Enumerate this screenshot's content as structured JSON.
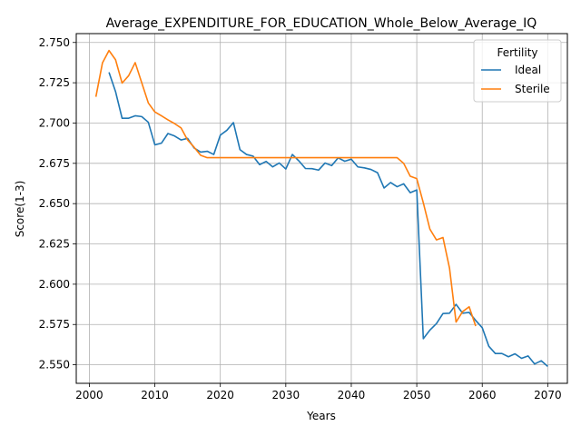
{
  "chart_data": {
    "type": "line",
    "title": "Average_EXPENDITURE_FOR_EDUCATION_Whole_Below_Average_IQ",
    "xlabel": "Years",
    "ylabel": "Score(1-3)",
    "xlim": [
      1998,
      2073
    ],
    "ylim": [
      2.5385,
      2.7555
    ],
    "x_ticks": [
      2000,
      2010,
      2020,
      2030,
      2040,
      2050,
      2060,
      2070
    ],
    "y_ticks": [
      2.55,
      2.575,
      2.6,
      2.625,
      2.65,
      2.675,
      2.7,
      2.725,
      2.75
    ],
    "x_tick_labels": [
      "2000",
      "2010",
      "2020",
      "2030",
      "2040",
      "2050",
      "2060",
      "2070"
    ],
    "y_tick_labels": [
      "2.550",
      "2.575",
      "2.600",
      "2.625",
      "2.650",
      "2.675",
      "2.700",
      "2.725",
      "2.750"
    ],
    "grid": true,
    "legend": {
      "title": "Fertility",
      "placement": "top-right"
    },
    "series": [
      {
        "name": "Ideal",
        "color": "#1f77b4",
        "x": [
          2003,
          2004,
          2005,
          2006,
          2007,
          2008,
          2009,
          2010,
          2011,
          2012,
          2013,
          2014,
          2015,
          2016,
          2017,
          2018,
          2019,
          2020,
          2021,
          2022,
          2023,
          2024,
          2025,
          2026,
          2027,
          2028,
          2029,
          2030,
          2031,
          2032,
          2033,
          2034,
          2035,
          2036,
          2037,
          2038,
          2039,
          2040,
          2041,
          2042,
          2043,
          2044,
          2045,
          2046,
          2047,
          2048,
          2049,
          2050,
          2051,
          2052,
          2053,
          2054,
          2055,
          2056,
          2057,
          2058,
          2059,
          2060,
          2061,
          2062,
          2063,
          2064,
          2065,
          2066,
          2067,
          2068,
          2069,
          2070
        ],
        "y": [
          2.7315,
          2.7195,
          2.703,
          2.703,
          2.7045,
          2.704,
          2.7005,
          2.6865,
          2.6875,
          2.6935,
          2.692,
          2.6895,
          2.6905,
          2.6845,
          2.682,
          2.6825,
          2.6805,
          2.6925,
          2.6955,
          2.7003,
          2.6835,
          2.6805,
          2.6795,
          2.6742,
          2.6762,
          2.6728,
          2.6752,
          2.6715,
          2.6805,
          2.6765,
          2.6718,
          2.6717,
          2.6708,
          2.6752,
          2.6736,
          2.6784,
          2.6763,
          2.6776,
          2.6728,
          2.6722,
          2.6712,
          2.6692,
          2.6597,
          2.6631,
          2.6605,
          2.6623,
          2.6568,
          2.6585,
          2.5662,
          2.5715,
          2.5755,
          2.5818,
          2.582,
          2.5875,
          2.582,
          2.5825,
          2.5775,
          2.573,
          2.5615,
          2.557,
          2.557,
          2.555,
          2.5568,
          2.554,
          2.5555,
          2.5505,
          2.5525,
          2.549
        ]
      },
      {
        "name": "Sterile",
        "color": "#ff7f0e",
        "x": [
          2001,
          2002,
          2003,
          2004,
          2005,
          2006,
          2007,
          2008,
          2009,
          2010,
          2011,
          2012,
          2013,
          2014,
          2015,
          2016,
          2017,
          2018,
          2019,
          2020,
          2021,
          2022,
          2023,
          2024,
          2025,
          2026,
          2027,
          2028,
          2029,
          2030,
          2031,
          2032,
          2033,
          2034,
          2035,
          2036,
          2037,
          2038,
          2039,
          2040,
          2041,
          2042,
          2043,
          2044,
          2045,
          2046,
          2047,
          2048,
          2049,
          2050,
          2051,
          2052,
          2053,
          2054,
          2055,
          2056,
          2057,
          2058,
          2059
        ],
        "y": [
          2.7163,
          2.7373,
          2.745,
          2.7393,
          2.7248,
          2.7294,
          2.7375,
          2.725,
          2.7125,
          2.7069,
          2.7045,
          2.702,
          2.6997,
          2.697,
          2.6895,
          2.685,
          2.68,
          2.6785,
          2.6785,
          2.6785,
          2.6785,
          2.6785,
          2.6785,
          2.6785,
          2.6785,
          2.6785,
          2.6785,
          2.6785,
          2.6785,
          2.6785,
          2.6785,
          2.6785,
          2.6785,
          2.6785,
          2.6785,
          2.6785,
          2.6785,
          2.6785,
          2.6785,
          2.6785,
          2.6785,
          2.6785,
          2.6785,
          2.6785,
          2.6785,
          2.6785,
          2.6785,
          2.675,
          2.667,
          2.6655,
          2.6505,
          2.6342,
          2.6275,
          2.629,
          2.61,
          2.5765,
          2.583,
          2.586,
          2.574
        ]
      }
    ]
  }
}
